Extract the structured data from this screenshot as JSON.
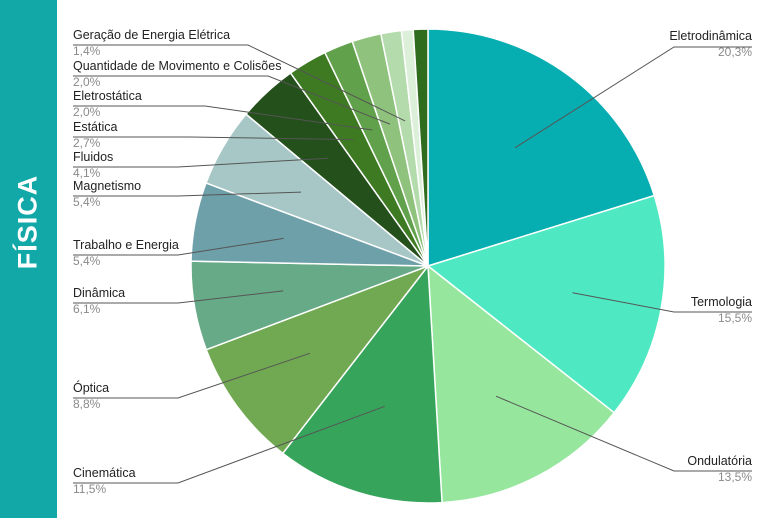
{
  "side_title": "FÍSICA",
  "chart_data": {
    "type": "pie",
    "start_angle_deg": 0,
    "direction": "clockwise",
    "slices": [
      {
        "label": "Eletrodinâmica",
        "value": 20.3,
        "value_label": "20,3%",
        "color": "#06adb1"
      },
      {
        "label": "Termologia",
        "value": 15.5,
        "value_label": "15,5%",
        "color": "#4ee8c2"
      },
      {
        "label": "Ondulatória",
        "value": 13.5,
        "value_label": "13,5%",
        "color": "#96e69e"
      },
      {
        "label": "Cinemática",
        "value": 11.5,
        "value_label": "11,5%",
        "color": "#36a55b"
      },
      {
        "label": "Óptica",
        "value": 8.8,
        "value_label": "8,8%",
        "color": "#71a953"
      },
      {
        "label": "Dinâmica",
        "value": 6.1,
        "value_label": "6,1%",
        "color": "#67aa87"
      },
      {
        "label": "Trabalho e Energia",
        "value": 5.4,
        "value_label": "5,4%",
        "color": "#6ea0aa"
      },
      {
        "label": "Magnetismo",
        "value": 5.4,
        "value_label": "5,4%",
        "color": "#a7c7c7"
      },
      {
        "label": "Fluidos",
        "value": 4.1,
        "value_label": "4,1%",
        "color": "#24501c"
      },
      {
        "label": "Estática",
        "value": 2.7,
        "value_label": "2,7%",
        "color": "#3d7a22"
      },
      {
        "label": "Eletrostática",
        "value": 2.0,
        "value_label": "2,0%",
        "color": "#62a14b"
      },
      {
        "label": "Quantidade de Movimento e Colisões",
        "value": 2.0,
        "value_label": "2,0%",
        "color": "#8fc27d"
      },
      {
        "label": "Geração de Energia Elétrica",
        "value": 1.4,
        "value_label": "1,4%",
        "color": "#b4dbab"
      },
      {
        "label": "",
        "value": 0.8,
        "value_label": "",
        "color": "#dcefd8"
      },
      {
        "label": "",
        "value": 1.0,
        "value_label": "",
        "color": "#2f6c1e"
      }
    ]
  }
}
